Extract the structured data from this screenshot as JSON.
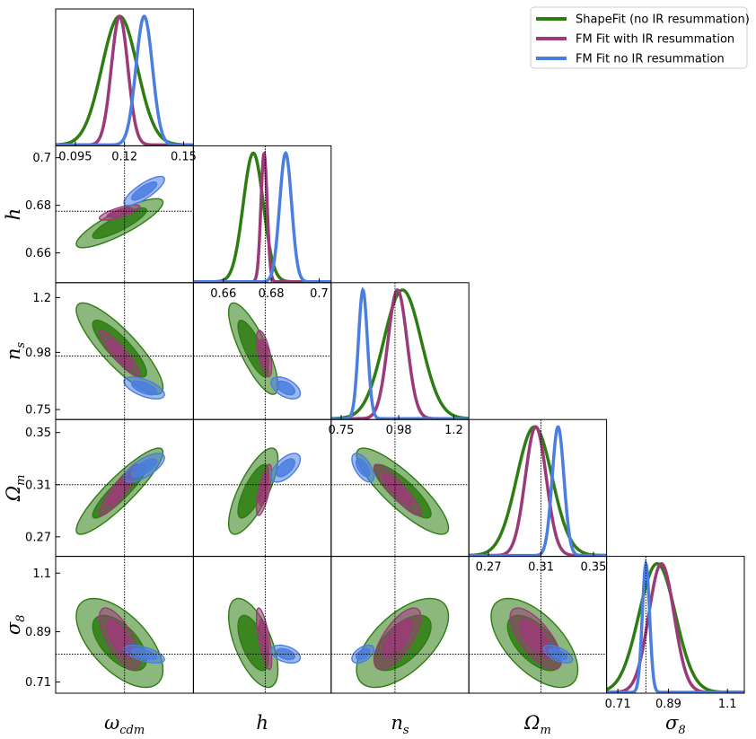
{
  "chart_data": {
    "type": "corner",
    "colors": {
      "ShapeFit": "#2e7d12",
      "FM_IR": "#9b3a78",
      "FM_noIR": "#4a7ee0"
    },
    "parameters": [
      {
        "key": "wcdm",
        "symbol": "ω",
        "sub": "cdm",
        "range": [
          0.085,
          0.155
        ],
        "ticks": [
          "0.095",
          "0.12",
          "0.15"
        ],
        "truth": 0.12
      },
      {
        "key": "h",
        "symbol": "h",
        "sub": "",
        "range": [
          0.6475,
          0.705
        ],
        "ticks": [
          "0.66",
          "0.68",
          "0.7"
        ],
        "truth": 0.6775
      },
      {
        "key": "ns",
        "symbol": "n",
        "sub": "s",
        "range": [
          0.71,
          1.26
        ],
        "ticks": [
          "0.75",
          "0.98",
          "1.2"
        ],
        "truth": 0.965
      },
      {
        "key": "Om",
        "symbol": "Ω",
        "sub": "m",
        "range": [
          0.255,
          0.36
        ],
        "ticks": [
          "0.27",
          "0.31",
          "0.35"
        ],
        "truth": 0.31
      },
      {
        "key": "s8",
        "symbol": "σ",
        "sub": "8",
        "range": [
          0.67,
          1.16
        ],
        "ticks": [
          "0.71",
          "0.89",
          "1.1"
        ],
        "truth": 0.81
      }
    ],
    "series": [
      {
        "name": "ShapeFit (no IR resummation)",
        "color": "#2e7d12",
        "mean": [
          0.1175,
          0.6725,
          0.995,
          0.305,
          0.85
        ],
        "sd": [
          0.009,
          0.0042,
          0.075,
          0.0135,
          0.065
        ],
        "corr": [
          [
            1,
            0.85,
            -0.85,
            0.9,
            -0.6
          ],
          [
            0.85,
            1,
            -0.8,
            0.75,
            -0.6
          ],
          [
            -0.85,
            -0.8,
            1,
            -0.85,
            0.6
          ],
          [
            0.9,
            0.75,
            -0.85,
            1,
            -0.6
          ],
          [
            -0.6,
            -0.6,
            0.6,
            -0.6,
            1
          ]
        ]
      },
      {
        "name": "FM Fit with IR resummation",
        "color": "#9b3a78",
        "mean": [
          0.1175,
          0.677,
          0.975,
          0.306,
          0.865
        ],
        "sd": [
          0.0042,
          0.0013,
          0.038,
          0.008,
          0.045
        ],
        "corr": [
          [
            1,
            0.75,
            -0.9,
            0.9,
            -0.7
          ],
          [
            0.75,
            1,
            -0.6,
            0.7,
            -0.7
          ],
          [
            -0.9,
            -0.6,
            1,
            -0.9,
            0.7
          ],
          [
            0.9,
            0.7,
            -0.9,
            1,
            -0.7
          ],
          [
            -0.7,
            -0.7,
            0.7,
            -0.7,
            1
          ]
        ]
      },
      {
        "name": "FM Fit no IR resummation",
        "color": "#4a7ee0",
        "mean": [
          0.13,
          0.686,
          0.837,
          0.323,
          0.81
        ],
        "sd": [
          0.0042,
          0.0025,
          0.018,
          0.0045,
          0.013
        ],
        "corr": [
          [
            1,
            0.8,
            -0.6,
            0.7,
            -0.6
          ],
          [
            0.8,
            1,
            -0.5,
            0.6,
            -0.4
          ],
          [
            -0.6,
            -0.5,
            1,
            -0.6,
            0.5
          ],
          [
            0.7,
            0.6,
            -0.6,
            1,
            -0.6
          ],
          [
            -0.6,
            -0.4,
            0.5,
            -0.6,
            1
          ]
        ]
      }
    ],
    "contour_levels": [
      "68%",
      "95%"
    ],
    "legend_position": "top-right",
    "grid": false
  }
}
